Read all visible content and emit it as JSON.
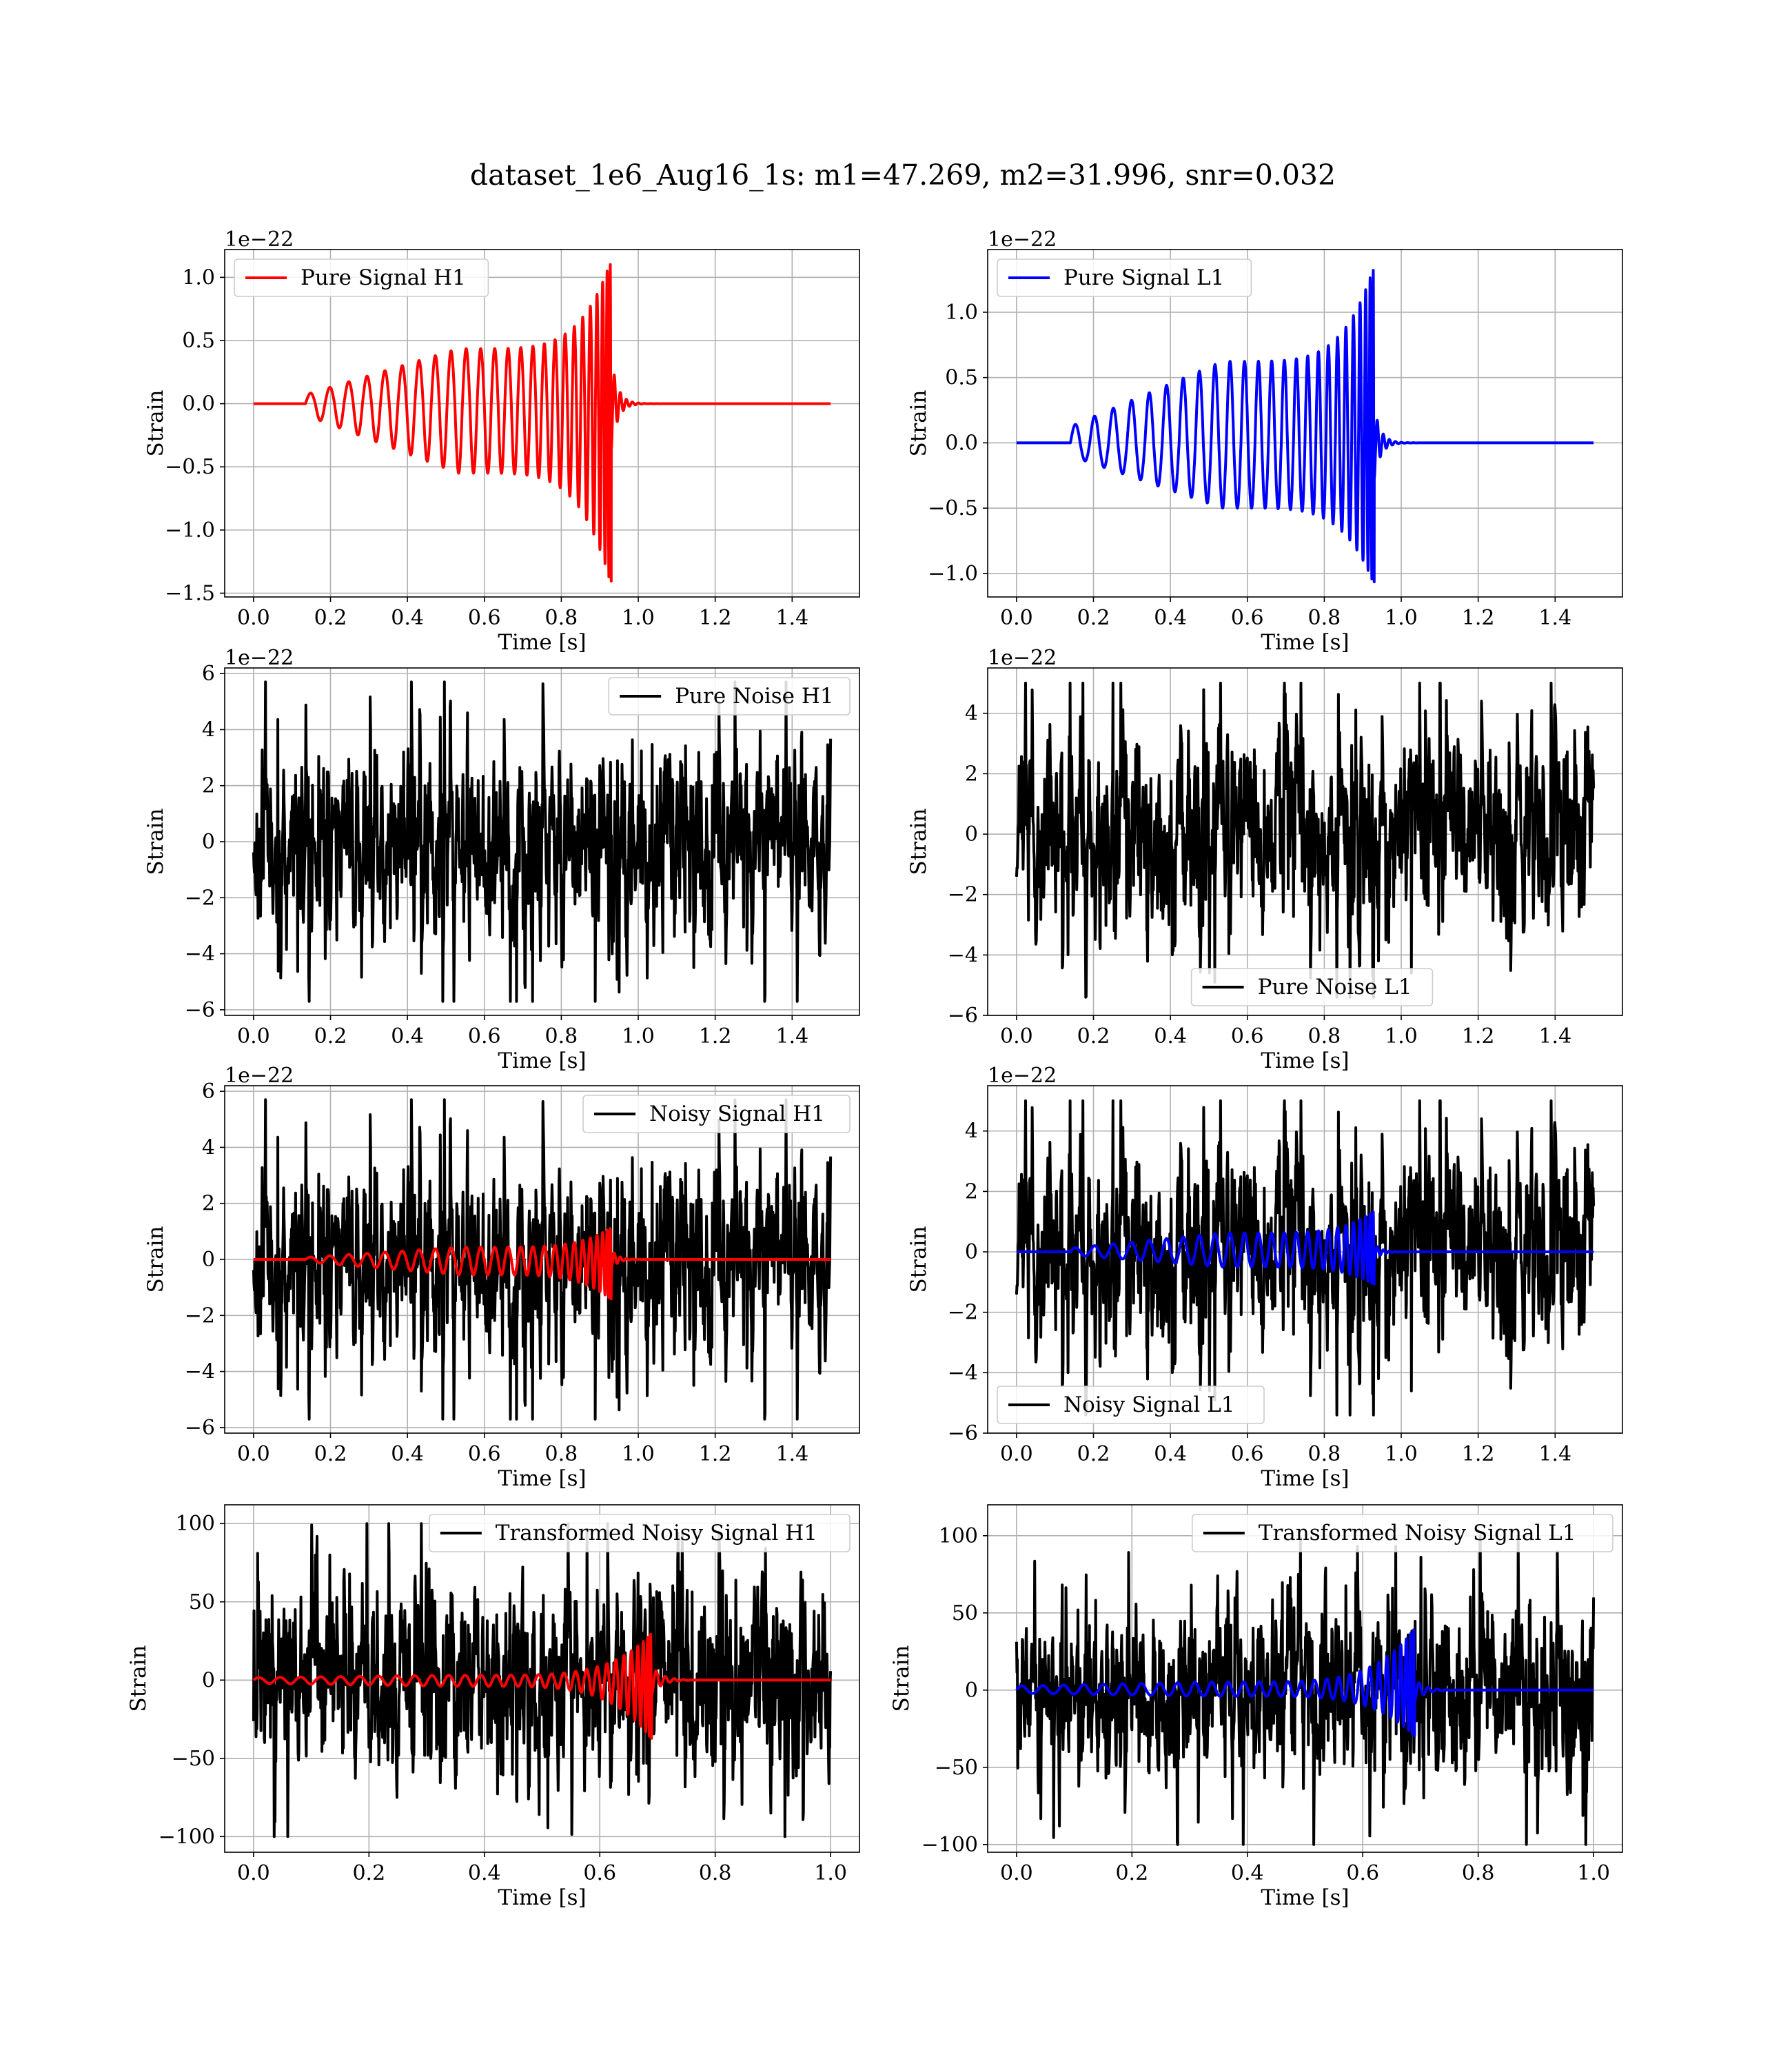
{
  "chart_data": {
    "title": "dataset_1e6_Aug16_1s: m1=47.269, m2=31.996, snr=0.032",
    "subplots": [
      {
        "type": "line",
        "id": "h1-pure-signal",
        "xlabel": "Time [s]",
        "ylabel": "Strain",
        "offset_text": "1e−22",
        "xlim": [
          -0.075,
          1.575
        ],
        "ylim": [
          -1.53,
          1.22
        ],
        "xticks": [
          0.0,
          0.2,
          0.4,
          0.6,
          0.8,
          1.0,
          1.2,
          1.4
        ],
        "xtick_labels": [
          "0.0",
          "0.2",
          "0.4",
          "0.6",
          "0.8",
          "1.0",
          "1.2",
          "1.4"
        ],
        "yticks": [
          -1.5,
          -1.0,
          -0.5,
          0.0,
          0.5,
          1.0
        ],
        "ytick_labels": [
          "−1.5",
          "−1.0",
          "−0.5",
          "0.0",
          "0.5",
          "1.0"
        ],
        "grid": true,
        "legend_position": "upper-left",
        "series": [
          {
            "name": "Pure Signal H1",
            "color": "#ff0000",
            "kind": "chirp",
            "x_range": [
              0,
              1.5
            ],
            "start": 0.135,
            "merger": 0.93,
            "cycles": 25,
            "peak_pos": 1.14,
            "peak_neg": -1.44,
            "amp_early": 0.09,
            "amp_mid": 0.55
          }
        ]
      },
      {
        "type": "line",
        "id": "l1-pure-signal",
        "xlabel": "Time [s]",
        "ylabel": "Strain",
        "offset_text": "1e−22",
        "xlim": [
          -0.075,
          1.575
        ],
        "ylim": [
          -1.18,
          1.48
        ],
        "xticks": [
          0.0,
          0.2,
          0.4,
          0.6,
          0.8,
          1.0,
          1.2,
          1.4
        ],
        "xtick_labels": [
          "0.0",
          "0.2",
          "0.4",
          "0.6",
          "0.8",
          "1.0",
          "1.2",
          "1.4"
        ],
        "yticks": [
          -1.0,
          -0.5,
          0.0,
          0.5,
          1.0
        ],
        "ytick_labels": [
          "−1.0",
          "−0.5",
          "0.0",
          "0.5",
          "1.0"
        ],
        "grid": true,
        "legend_position": "upper-left",
        "series": [
          {
            "name": "Pure Signal L1",
            "color": "#0000ff",
            "kind": "chirp",
            "x_range": [
              0,
              1.5
            ],
            "start": 0.14,
            "merger": 0.93,
            "cycles": 25,
            "peak_pos": 1.36,
            "peak_neg": -1.09,
            "amp_early": 0.1,
            "amp_mid": 0.5
          }
        ]
      },
      {
        "type": "line",
        "id": "h1-pure-noise",
        "xlabel": "Time [s]",
        "ylabel": "Strain",
        "offset_text": "1e−22",
        "xlim": [
          -0.075,
          1.575
        ],
        "ylim": [
          -6.2,
          6.2
        ],
        "xticks": [
          0.0,
          0.2,
          0.4,
          0.6,
          0.8,
          1.0,
          1.2,
          1.4
        ],
        "xtick_labels": [
          "0.0",
          "0.2",
          "0.4",
          "0.6",
          "0.8",
          "1.0",
          "1.2",
          "1.4"
        ],
        "yticks": [
          -6,
          -4,
          -2,
          0,
          2,
          4,
          6
        ],
        "ytick_labels": [
          "−6",
          "−4",
          "−2",
          "0",
          "2",
          "4",
          "6"
        ],
        "grid": true,
        "legend_position": "upper-right",
        "series": [
          {
            "name": "Pure Noise H1",
            "color": "#000000",
            "kind": "noise",
            "x_range": [
              0,
              1.5
            ],
            "sigma": 1.6,
            "max": 5.7,
            "min": -5.7,
            "seed": 11
          }
        ]
      },
      {
        "type": "line",
        "id": "l1-pure-noise",
        "xlabel": "Time [s]",
        "ylabel": "Strain",
        "offset_text": "1e−22",
        "xlim": [
          -0.075,
          1.575
        ],
        "ylim": [
          -6.0,
          5.5
        ],
        "xticks": [
          0.0,
          0.2,
          0.4,
          0.6,
          0.8,
          1.0,
          1.2,
          1.4
        ],
        "xtick_labels": [
          "0.0",
          "0.2",
          "0.4",
          "0.6",
          "0.8",
          "1.0",
          "1.2",
          "1.4"
        ],
        "yticks": [
          -6,
          -4,
          -2,
          0,
          2,
          4
        ],
        "ytick_labels": [
          "−6",
          "−4",
          "−2",
          "0",
          "2",
          "4"
        ],
        "grid": true,
        "legend_position": "lower-center",
        "series": [
          {
            "name": "Pure Noise L1",
            "color": "#000000",
            "kind": "noise",
            "x_range": [
              0,
              1.5
            ],
            "sigma": 1.5,
            "max": 5.0,
            "min": -5.4,
            "seed": 23
          }
        ]
      },
      {
        "type": "line",
        "id": "h1-noisy-signal",
        "xlabel": "Time [s]",
        "ylabel": "Strain",
        "offset_text": "1e−22",
        "xlim": [
          -0.075,
          1.575
        ],
        "ylim": [
          -6.2,
          6.2
        ],
        "xticks": [
          0.0,
          0.2,
          0.4,
          0.6,
          0.8,
          1.0,
          1.2,
          1.4
        ],
        "xtick_labels": [
          "0.0",
          "0.2",
          "0.4",
          "0.6",
          "0.8",
          "1.0",
          "1.2",
          "1.4"
        ],
        "yticks": [
          -6,
          -4,
          -2,
          0,
          2,
          4,
          6
        ],
        "ytick_labels": [
          "−6",
          "−4",
          "−2",
          "0",
          "2",
          "4",
          "6"
        ],
        "grid": true,
        "legend_position": "upper-right",
        "series": [
          {
            "name": "Noisy Signal H1",
            "color": "#000000",
            "kind": "noise",
            "x_range": [
              0,
              1.5
            ],
            "sigma": 1.6,
            "max": 5.7,
            "min": -5.7,
            "seed": 11
          },
          {
            "name": "",
            "color": "#ff0000",
            "kind": "chirp",
            "x_range": [
              0,
              1.5
            ],
            "start": 0.135,
            "merger": 0.93,
            "cycles": 25,
            "peak_pos": 1.14,
            "peak_neg": -1.44,
            "amp_early": 0.09,
            "amp_mid": 0.55
          }
        ]
      },
      {
        "type": "line",
        "id": "l1-noisy-signal",
        "xlabel": "Time [s]",
        "ylabel": "Strain",
        "offset_text": "1e−22",
        "xlim": [
          -0.075,
          1.575
        ],
        "ylim": [
          -6.0,
          5.5
        ],
        "xticks": [
          0.0,
          0.2,
          0.4,
          0.6,
          0.8,
          1.0,
          1.2,
          1.4
        ],
        "xtick_labels": [
          "0.0",
          "0.2",
          "0.4",
          "0.6",
          "0.8",
          "1.0",
          "1.2",
          "1.4"
        ],
        "yticks": [
          -6,
          -4,
          -2,
          0,
          2,
          4
        ],
        "ytick_labels": [
          "−6",
          "−4",
          "−2",
          "0",
          "2",
          "4"
        ],
        "grid": true,
        "legend_position": "lower-left",
        "series": [
          {
            "name": "Noisy Signal L1",
            "color": "#000000",
            "kind": "noise",
            "x_range": [
              0,
              1.5
            ],
            "sigma": 1.5,
            "max": 5.0,
            "min": -5.4,
            "seed": 23
          },
          {
            "name": "",
            "color": "#0000ff",
            "kind": "chirp",
            "x_range": [
              0,
              1.5
            ],
            "start": 0.14,
            "merger": 0.93,
            "cycles": 25,
            "peak_pos": 1.36,
            "peak_neg": -1.09,
            "amp_early": 0.1,
            "amp_mid": 0.5
          }
        ]
      },
      {
        "type": "line",
        "id": "h1-transformed",
        "xlabel": "Time [s]",
        "ylabel": "Strain",
        "offset_text": "",
        "xlim": [
          -0.05,
          1.05
        ],
        "ylim": [
          -110,
          112
        ],
        "xticks": [
          0.0,
          0.2,
          0.4,
          0.6,
          0.8,
          1.0
        ],
        "xtick_labels": [
          "0.0",
          "0.2",
          "0.4",
          "0.6",
          "0.8",
          "1.0"
        ],
        "yticks": [
          -100,
          -50,
          0,
          50,
          100
        ],
        "ytick_labels": [
          "−100",
          "−50",
          "0",
          "50",
          "100"
        ],
        "grid": true,
        "legend_position": "upper-right",
        "series": [
          {
            "name": "Transformed Noisy Signal H1",
            "color": "#000000",
            "kind": "noise",
            "x_range": [
              0,
              1.0
            ],
            "sigma": 28,
            "max": 100,
            "min": -100,
            "seed": 37
          },
          {
            "name": "",
            "color": "#ff0000",
            "kind": "chirp",
            "x_range": [
              0,
              1.0
            ],
            "start": 0.0,
            "merger": 0.69,
            "cycles": 30,
            "peak_pos": 30,
            "peak_neg": -38,
            "amp_early": 2,
            "amp_mid": 4
          }
        ]
      },
      {
        "type": "line",
        "id": "l1-transformed",
        "xlabel": "Time [s]",
        "ylabel": "Strain",
        "offset_text": "",
        "xlim": [
          -0.05,
          1.05
        ],
        "ylim": [
          -105,
          120
        ],
        "xticks": [
          0.0,
          0.2,
          0.4,
          0.6,
          0.8,
          1.0
        ],
        "xtick_labels": [
          "0.0",
          "0.2",
          "0.4",
          "0.6",
          "0.8",
          "1.0"
        ],
        "yticks": [
          -100,
          -50,
          0,
          50,
          100
        ],
        "ytick_labels": [
          "−100",
          "−50",
          "0",
          "50",
          "100"
        ],
        "grid": true,
        "legend_position": "upper-right",
        "series": [
          {
            "name": "Transformed Noisy Signal L1",
            "color": "#000000",
            "kind": "noise",
            "x_range": [
              0,
              1.0
            ],
            "sigma": 26,
            "max": 100,
            "min": -100,
            "seed": 53
          },
          {
            "name": "",
            "color": "#0000ff",
            "kind": "chirp",
            "x_range": [
              0,
              1.0
            ],
            "start": 0.0,
            "merger": 0.69,
            "cycles": 30,
            "peak_pos": 40,
            "peak_neg": -30,
            "amp_early": 2,
            "amp_mid": 4
          }
        ]
      }
    ]
  }
}
